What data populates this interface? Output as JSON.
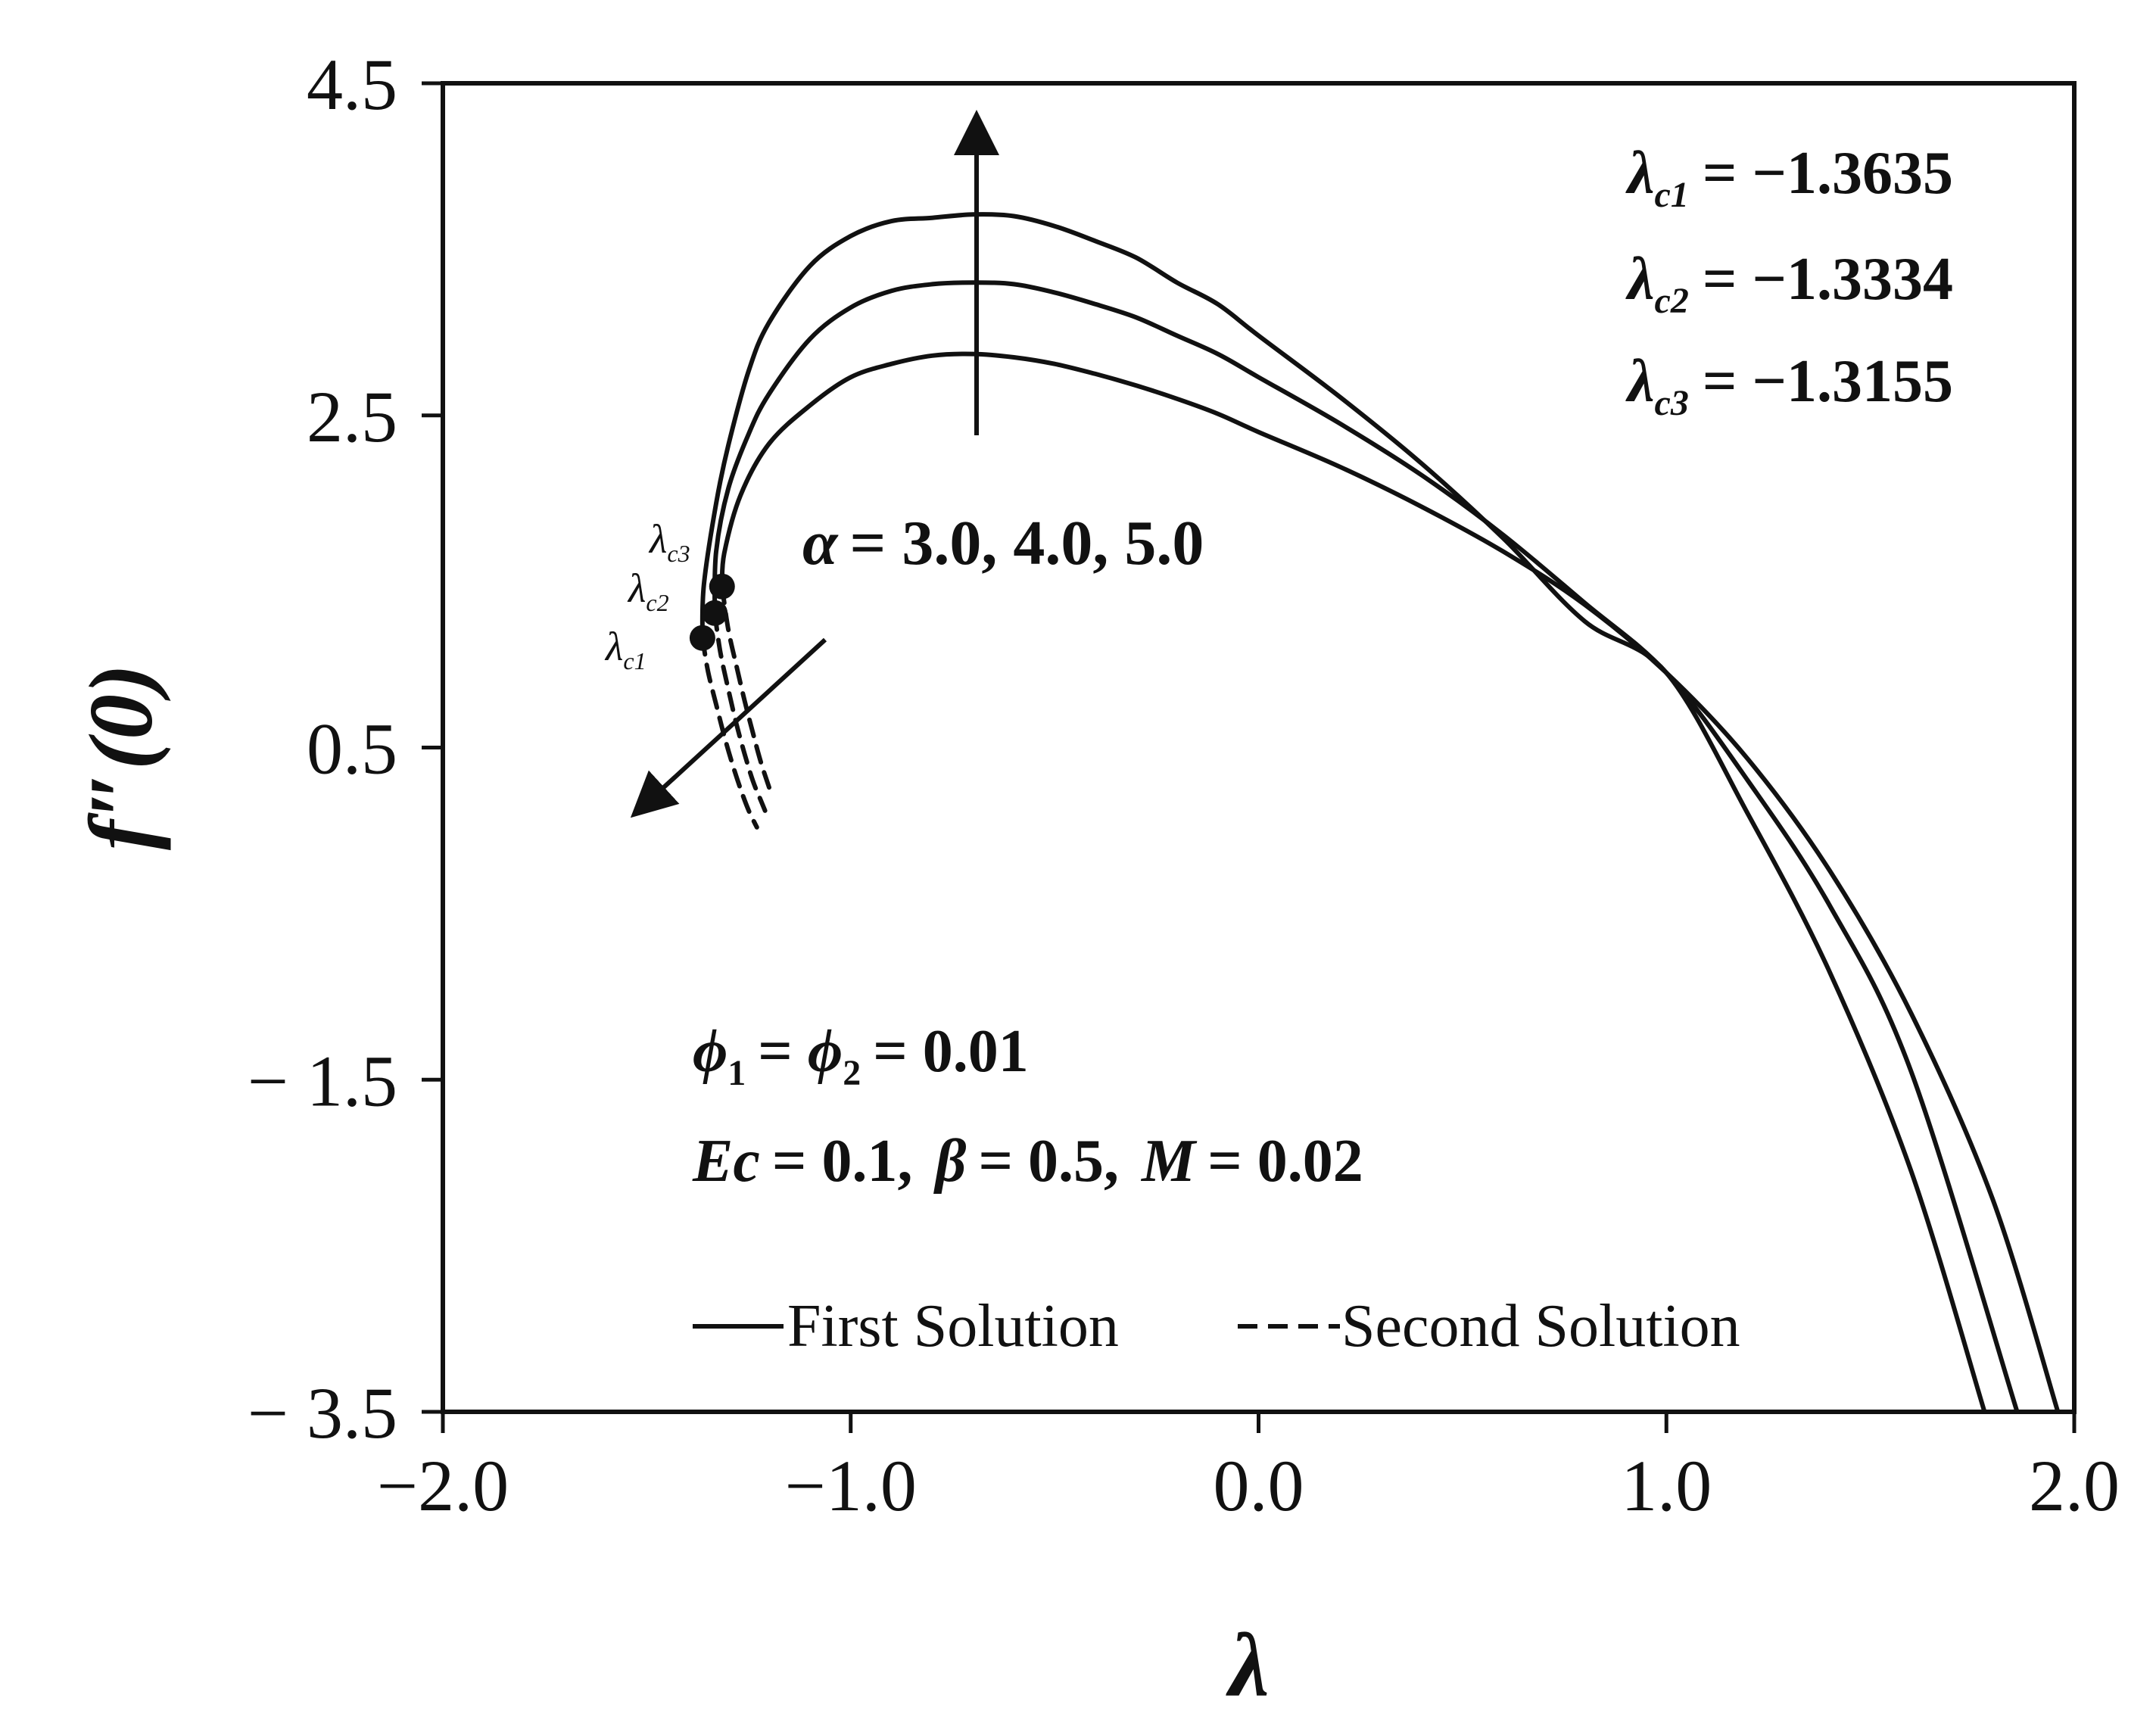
{
  "chart_data": {
    "type": "line",
    "title": "",
    "xlabel": "λ",
    "ylabel": "f″(0)",
    "xlim": [
      -2.0,
      2.0
    ],
    "ylim": [
      -3.5,
      4.5
    ],
    "x_ticks": [
      -2.0,
      -1.0,
      0.0,
      1.0,
      2.0
    ],
    "x_tick_labels": [
      "−2.0",
      "−1.0",
      "0.0",
      "1.0",
      "2.0"
    ],
    "y_ticks": [
      -3.5,
      -1.5,
      0.5,
      2.5,
      4.5
    ],
    "y_tick_labels": [
      "− 3.5",
      "− 1.5",
      "0.5",
      "2.5",
      "4.5"
    ],
    "grid": false,
    "legend": {
      "placement": "bottom-center",
      "entries": [
        {
          "label": "First Solution",
          "style": "solid"
        },
        {
          "label": "Second Solution",
          "style": "dashed"
        }
      ]
    },
    "series": [
      {
        "parameter": "α = 3.0",
        "first_solution": {
          "x": [
            -1.3155,
            -1.31,
            -1.27,
            -1.2,
            -1.1,
            -1.0,
            -0.9,
            -0.8,
            -0.7,
            -0.6,
            -0.5,
            -0.4,
            -0.3,
            -0.2,
            -0.1,
            0.0,
            0.2,
            0.4,
            0.6,
            0.8,
            1.0,
            1.2,
            1.4,
            1.6,
            1.8,
            1.96
          ],
          "y": [
            1.47,
            1.67,
            2.02,
            2.33,
            2.56,
            2.73,
            2.81,
            2.86,
            2.87,
            2.85,
            2.81,
            2.75,
            2.68,
            2.6,
            2.51,
            2.4,
            2.19,
            1.95,
            1.68,
            1.36,
            0.95,
            0.43,
            -0.24,
            -1.1,
            -2.22,
            -3.5
          ]
        },
        "second_solution": {
          "x": [
            -1.3155,
            -1.3,
            -1.28,
            -1.26,
            -1.24,
            -1.22,
            -1.2
          ],
          "y": [
            1.47,
            1.21,
            0.99,
            0.78,
            0.59,
            0.41,
            0.26
          ]
        },
        "critical_point": {
          "name": "λc3",
          "x": -1.3155,
          "y": 1.47
        }
      },
      {
        "parameter": "α = 4.0",
        "first_solution": {
          "x": [
            -1.3334,
            -1.33,
            -1.3,
            -1.25,
            -1.2,
            -1.1,
            -1.0,
            -0.9,
            -0.8,
            -0.7,
            -0.6,
            -0.5,
            -0.4,
            -0.3,
            -0.2,
            -0.1,
            0.0,
            0.2,
            0.4,
            0.6,
            0.8,
            1.0,
            1.2,
            1.4,
            1.6,
            1.86
          ],
          "y": [
            1.31,
            1.68,
            2.06,
            2.39,
            2.63,
            2.96,
            3.15,
            3.25,
            3.29,
            3.3,
            3.29,
            3.24,
            3.17,
            3.09,
            2.98,
            2.87,
            2.73,
            2.45,
            2.14,
            1.78,
            1.37,
            0.95,
            0.3,
            -0.45,
            -1.45,
            -3.5
          ]
        },
        "second_solution": {
          "x": [
            -1.3334,
            -1.32,
            -1.3,
            -1.28,
            -1.26,
            -1.24,
            -1.22,
            -1.21
          ],
          "y": [
            1.31,
            1.08,
            0.85,
            0.64,
            0.46,
            0.3,
            0.18,
            0.12
          ]
        },
        "critical_point": {
          "name": "λc2",
          "x": -1.3334,
          "y": 1.31
        }
      },
      {
        "parameter": "α = 5.0",
        "first_solution": {
          "x": [
            -1.3635,
            -1.36,
            -1.33,
            -1.3,
            -1.25,
            -1.2,
            -1.1,
            -1.0,
            -0.9,
            -0.8,
            -0.7,
            -0.6,
            -0.5,
            -0.4,
            -0.3,
            -0.2,
            -0.1,
            0.0,
            0.2,
            0.4,
            0.6,
            0.8,
            1.0,
            1.2,
            1.4,
            1.6,
            1.78
          ],
          "y": [
            1.16,
            1.48,
            1.97,
            2.32,
            2.77,
            3.06,
            3.4,
            3.58,
            3.67,
            3.69,
            3.71,
            3.7,
            3.64,
            3.55,
            3.45,
            3.3,
            3.17,
            2.98,
            2.61,
            2.21,
            1.76,
            1.26,
            0.95,
            0.1,
            -0.85,
            -2.05,
            -3.5
          ]
        },
        "second_solution": {
          "x": [
            -1.3635,
            -1.35,
            -1.33,
            -1.31,
            -1.29,
            -1.27,
            -1.25,
            -1.23
          ],
          "y": [
            1.16,
            0.96,
            0.76,
            0.57,
            0.4,
            0.25,
            0.12,
            0.02
          ]
        },
        "critical_point": {
          "name": "λc1",
          "x": -1.3635,
          "y": 1.16
        }
      }
    ],
    "annotations": {
      "critical_values": [
        {
          "symbol": "λ",
          "sub": "c1",
          "value": "= −1.3635"
        },
        {
          "symbol": "λ",
          "sub": "c2",
          "value": "= −1.3334"
        },
        {
          "symbol": "λ",
          "sub": "c3",
          "value": "= −1.3155"
        }
      ],
      "alpha_label": {
        "symbol": "α",
        "value": "= 3.0, 4.0, 5.0"
      },
      "phi_label": {
        "phi": "ϕ",
        "sub1": "1",
        "mid": "= ",
        "sub2": "2",
        "value": "= 0.01"
      },
      "params_label": {
        "ec": "Ec",
        "ec_value": "= 0.1,",
        "beta": "β",
        "beta_value": "= 0.5,",
        "m": "M",
        "m_value": "= 0.02"
      },
      "point_labels": [
        {
          "symbol": "λ",
          "sub": "c3"
        },
        {
          "symbol": "λ",
          "sub": "c2"
        },
        {
          "symbol": "λ",
          "sub": "c1"
        }
      ]
    }
  }
}
